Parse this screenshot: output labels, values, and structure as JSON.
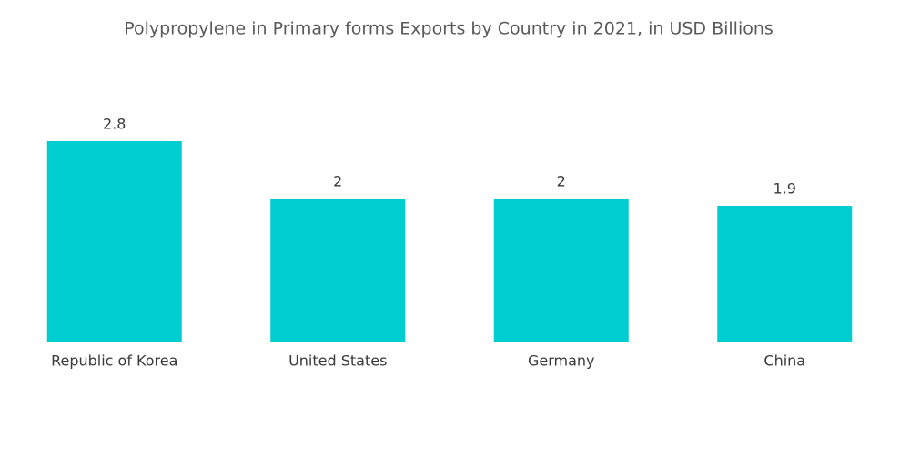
{
  "chart_data": {
    "type": "bar",
    "title": "Polypropylene in Primary forms Exports by Country in 2021, in USD Billions",
    "categories": [
      "Republic of Korea",
      "United States",
      "Germany",
      "China"
    ],
    "values": [
      2.8,
      2,
      2,
      1.9
    ],
    "color": "#00cdd0"
  }
}
